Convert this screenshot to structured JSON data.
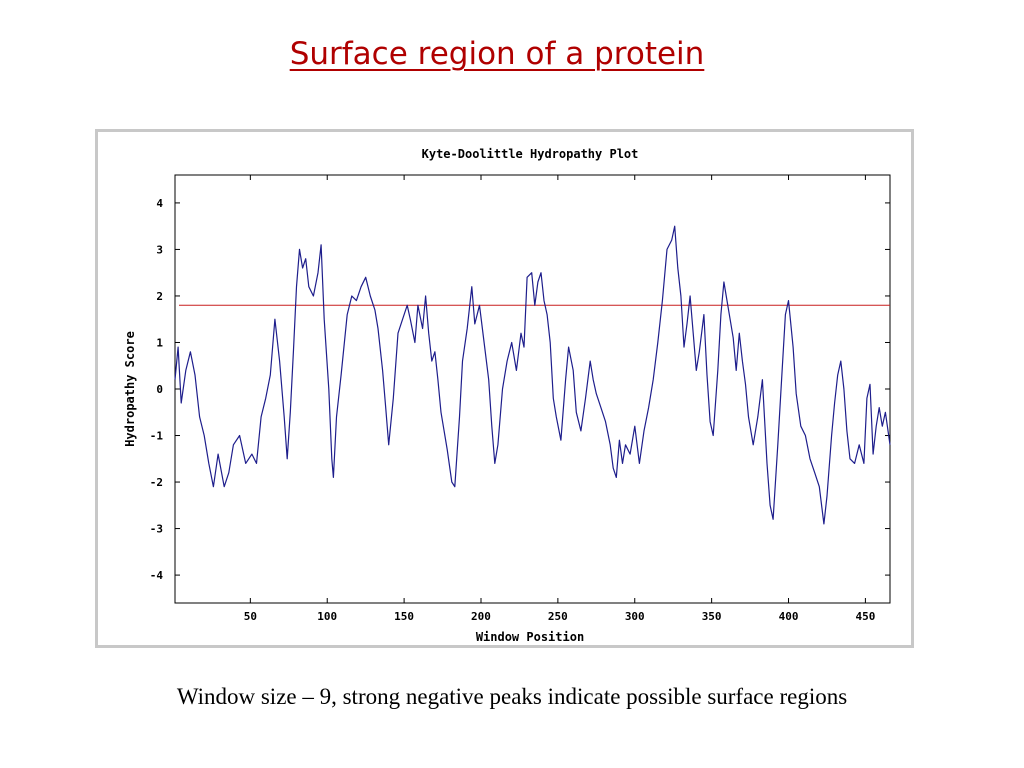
{
  "slide": {
    "title": "Surface region of a protein",
    "caption": "Window size – 9, strong negative peaks indicate possible surface regions"
  },
  "colors": {
    "title": "#b00000",
    "series": "#1e1e8c",
    "threshold": "#c81e1e",
    "axis": "#000000",
    "frame": "#c8c8c8"
  },
  "chart_data": {
    "type": "line",
    "title": "Kyte-Doolittle Hydropathy Plot",
    "xlabel": "Window Position",
    "ylabel": "Hydropathy Score",
    "xlim": [
      1,
      466
    ],
    "ylim": [
      -4.6,
      4.6
    ],
    "xticks": [
      50,
      100,
      150,
      200,
      250,
      300,
      350,
      400,
      450
    ],
    "yticks": [
      -4,
      -3,
      -2,
      -1,
      0,
      1,
      2,
      3,
      4
    ],
    "threshold": 1.8,
    "grid": false,
    "series": [
      {
        "keypoints": [
          [
            1,
            0.2
          ],
          [
            3,
            0.9
          ],
          [
            5,
            -0.3
          ],
          [
            8,
            0.4
          ],
          [
            11,
            0.8
          ],
          [
            14,
            0.3
          ],
          [
            17,
            -0.6
          ],
          [
            20,
            -1.0
          ],
          [
            23,
            -1.6
          ],
          [
            26,
            -2.1
          ],
          [
            29,
            -1.4
          ],
          [
            33,
            -2.1
          ],
          [
            36,
            -1.8
          ],
          [
            39,
            -1.2
          ],
          [
            43,
            -1.0
          ],
          [
            47,
            -1.6
          ],
          [
            51,
            -1.4
          ],
          [
            54,
            -1.6
          ],
          [
            57,
            -0.6
          ],
          [
            60,
            -0.2
          ],
          [
            63,
            0.3
          ],
          [
            66,
            1.5
          ],
          [
            69,
            0.6
          ],
          [
            72,
            -0.6
          ],
          [
            74,
            -1.5
          ],
          [
            76,
            -0.5
          ],
          [
            78,
            0.8
          ],
          [
            80,
            2.2
          ],
          [
            82,
            3.0
          ],
          [
            84,
            2.6
          ],
          [
            86,
            2.8
          ],
          [
            88,
            2.2
          ],
          [
            91,
            2.0
          ],
          [
            94,
            2.5
          ],
          [
            96,
            3.1
          ],
          [
            98,
            1.5
          ],
          [
            101,
            0.0
          ],
          [
            103,
            -1.5
          ],
          [
            104,
            -1.9
          ],
          [
            106,
            -0.6
          ],
          [
            109,
            0.3
          ],
          [
            113,
            1.6
          ],
          [
            116,
            2.0
          ],
          [
            119,
            1.9
          ],
          [
            122,
            2.2
          ],
          [
            125,
            2.4
          ],
          [
            128,
            2.0
          ],
          [
            131,
            1.7
          ],
          [
            133,
            1.3
          ],
          [
            136,
            0.4
          ],
          [
            138,
            -0.4
          ],
          [
            140,
            -1.2
          ],
          [
            143,
            -0.2
          ],
          [
            146,
            1.2
          ],
          [
            149,
            1.5
          ],
          [
            152,
            1.8
          ],
          [
            154,
            1.5
          ],
          [
            157,
            1.0
          ],
          [
            159,
            1.8
          ],
          [
            162,
            1.3
          ],
          [
            164,
            2.0
          ],
          [
            166,
            1.2
          ],
          [
            168,
            0.6
          ],
          [
            170,
            0.8
          ],
          [
            172,
            0.2
          ],
          [
            174,
            -0.5
          ],
          [
            176,
            -0.9
          ],
          [
            178,
            -1.3
          ],
          [
            181,
            -2.0
          ],
          [
            183,
            -2.1
          ],
          [
            186,
            -0.6
          ],
          [
            188,
            0.6
          ],
          [
            191,
            1.3
          ],
          [
            194,
            2.2
          ],
          [
            196,
            1.4
          ],
          [
            199,
            1.8
          ],
          [
            202,
            1.0
          ],
          [
            205,
            0.2
          ],
          [
            207,
            -0.8
          ],
          [
            209,
            -1.6
          ],
          [
            211,
            -1.2
          ],
          [
            214,
            0.0
          ],
          [
            217,
            0.6
          ],
          [
            220,
            1.0
          ],
          [
            223,
            0.4
          ],
          [
            226,
            1.2
          ],
          [
            228,
            0.9
          ],
          [
            230,
            2.4
          ],
          [
            233,
            2.5
          ],
          [
            235,
            1.8
          ],
          [
            237,
            2.3
          ],
          [
            239,
            2.5
          ],
          [
            241,
            1.9
          ],
          [
            243,
            1.6
          ],
          [
            245,
            1.0
          ],
          [
            247,
            -0.2
          ],
          [
            249,
            -0.6
          ],
          [
            252,
            -1.1
          ],
          [
            255,
            0.2
          ],
          [
            257,
            0.9
          ],
          [
            260,
            0.4
          ],
          [
            262,
            -0.5
          ],
          [
            265,
            -0.9
          ],
          [
            268,
            -0.2
          ],
          [
            271,
            0.6
          ],
          [
            273,
            0.2
          ],
          [
            275,
            -0.1
          ],
          [
            278,
            -0.4
          ],
          [
            281,
            -0.7
          ],
          [
            284,
            -1.2
          ],
          [
            286,
            -1.7
          ],
          [
            288,
            -1.9
          ],
          [
            290,
            -1.1
          ],
          [
            292,
            -1.6
          ],
          [
            294,
            -1.2
          ],
          [
            297,
            -1.4
          ],
          [
            300,
            -0.8
          ],
          [
            303,
            -1.6
          ],
          [
            306,
            -0.9
          ],
          [
            309,
            -0.4
          ],
          [
            312,
            0.2
          ],
          [
            315,
            1.0
          ],
          [
            318,
            1.9
          ],
          [
            321,
            3.0
          ],
          [
            324,
            3.2
          ],
          [
            326,
            3.5
          ],
          [
            328,
            2.6
          ],
          [
            330,
            2.0
          ],
          [
            332,
            0.9
          ],
          [
            334,
            1.4
          ],
          [
            336,
            2.0
          ],
          [
            338,
            1.2
          ],
          [
            340,
            0.4
          ],
          [
            342,
            0.8
          ],
          [
            345,
            1.6
          ],
          [
            347,
            0.3
          ],
          [
            349,
            -0.7
          ],
          [
            351,
            -1.0
          ],
          [
            354,
            0.4
          ],
          [
            356,
            1.6
          ],
          [
            358,
            2.3
          ],
          [
            360,
            1.9
          ],
          [
            362,
            1.5
          ],
          [
            364,
            1.1
          ],
          [
            366,
            0.4
          ],
          [
            368,
            1.2
          ],
          [
            370,
            0.6
          ],
          [
            372,
            0.1
          ],
          [
            374,
            -0.6
          ],
          [
            377,
            -1.2
          ],
          [
            380,
            -0.6
          ],
          [
            383,
            0.2
          ],
          [
            386,
            -1.6
          ],
          [
            388,
            -2.5
          ],
          [
            390,
            -2.8
          ],
          [
            393,
            -1.2
          ],
          [
            396,
            0.5
          ],
          [
            398,
            1.6
          ],
          [
            400,
            1.9
          ],
          [
            403,
            0.9
          ],
          [
            405,
            -0.1
          ],
          [
            408,
            -0.8
          ],
          [
            411,
            -1.0
          ],
          [
            414,
            -1.5
          ],
          [
            417,
            -1.8
          ],
          [
            420,
            -2.1
          ],
          [
            423,
            -2.9
          ],
          [
            425,
            -2.3
          ],
          [
            428,
            -1.0
          ],
          [
            430,
            -0.3
          ],
          [
            432,
            0.3
          ],
          [
            434,
            0.6
          ],
          [
            436,
            0.0
          ],
          [
            438,
            -0.9
          ],
          [
            440,
            -1.5
          ],
          [
            443,
            -1.6
          ],
          [
            446,
            -1.2
          ],
          [
            449,
            -1.6
          ],
          [
            451,
            -0.2
          ],
          [
            453,
            0.1
          ],
          [
            455,
            -1.4
          ],
          [
            457,
            -0.8
          ],
          [
            459,
            -0.4
          ],
          [
            461,
            -0.8
          ],
          [
            463,
            -0.5
          ],
          [
            466,
            -1.2
          ]
        ]
      }
    ]
  }
}
